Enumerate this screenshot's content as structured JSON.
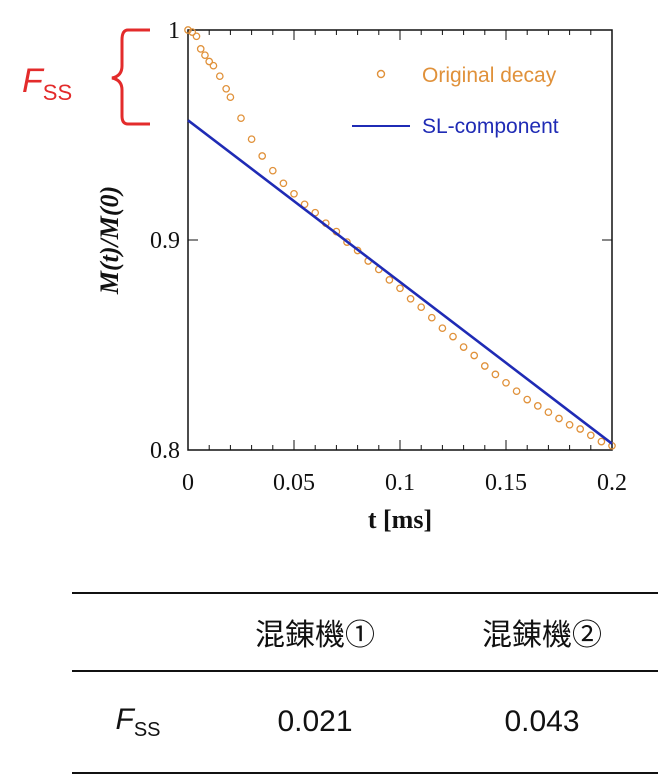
{
  "chart_data": {
    "type": "scatter",
    "xlabel": "t [ms]",
    "ylabel": "M(t)/M(0)",
    "xlim": [
      0,
      0.2
    ],
    "ylim": [
      0.8,
      1.0
    ],
    "x_ticks": [
      0,
      0.05,
      0.1,
      0.15,
      0.2
    ],
    "x_tick_labels": [
      "0",
      "0.05",
      "0.1",
      "0.15",
      "0.2"
    ],
    "y_ticks": [
      0.8,
      0.9,
      1.0
    ],
    "y_tick_labels": [
      "0.8",
      "0.9",
      "1"
    ],
    "legend_position": "top-right",
    "series": [
      {
        "name": "Original decay",
        "marker": "open-circle",
        "color": "#e0913a",
        "x": [
          0.0,
          0.002,
          0.004,
          0.006,
          0.008,
          0.01,
          0.012,
          0.015,
          0.018,
          0.02,
          0.025,
          0.03,
          0.035,
          0.04,
          0.045,
          0.05,
          0.055,
          0.06,
          0.065,
          0.07,
          0.075,
          0.08,
          0.085,
          0.09,
          0.095,
          0.1,
          0.105,
          0.11,
          0.115,
          0.12,
          0.125,
          0.13,
          0.135,
          0.14,
          0.145,
          0.15,
          0.155,
          0.16,
          0.165,
          0.17,
          0.175,
          0.18,
          0.185,
          0.19,
          0.195,
          0.2
        ],
        "y": [
          1.0,
          0.999,
          0.997,
          0.991,
          0.988,
          0.985,
          0.983,
          0.978,
          0.972,
          0.968,
          0.958,
          0.948,
          0.94,
          0.933,
          0.927,
          0.922,
          0.917,
          0.913,
          0.908,
          0.904,
          0.899,
          0.895,
          0.89,
          0.886,
          0.881,
          0.877,
          0.872,
          0.868,
          0.863,
          0.858,
          0.854,
          0.849,
          0.845,
          0.84,
          0.836,
          0.832,
          0.828,
          0.824,
          0.821,
          0.818,
          0.815,
          0.812,
          0.81,
          0.807,
          0.804,
          0.802
        ]
      },
      {
        "name": "SL-component",
        "marker": "line",
        "color": "#1f2bb5",
        "x": [
          0.0,
          0.2
        ],
        "y": [
          0.957,
          0.803
        ]
      }
    ]
  },
  "annotation": {
    "label": "F",
    "label_sub": "SS",
    "color": "#e32b2b"
  },
  "table": {
    "columns": [
      "",
      "混錬機①",
      "混錬機②"
    ],
    "row_label": "F",
    "row_label_sub": "SS",
    "values": [
      "0.021",
      "0.043"
    ]
  }
}
